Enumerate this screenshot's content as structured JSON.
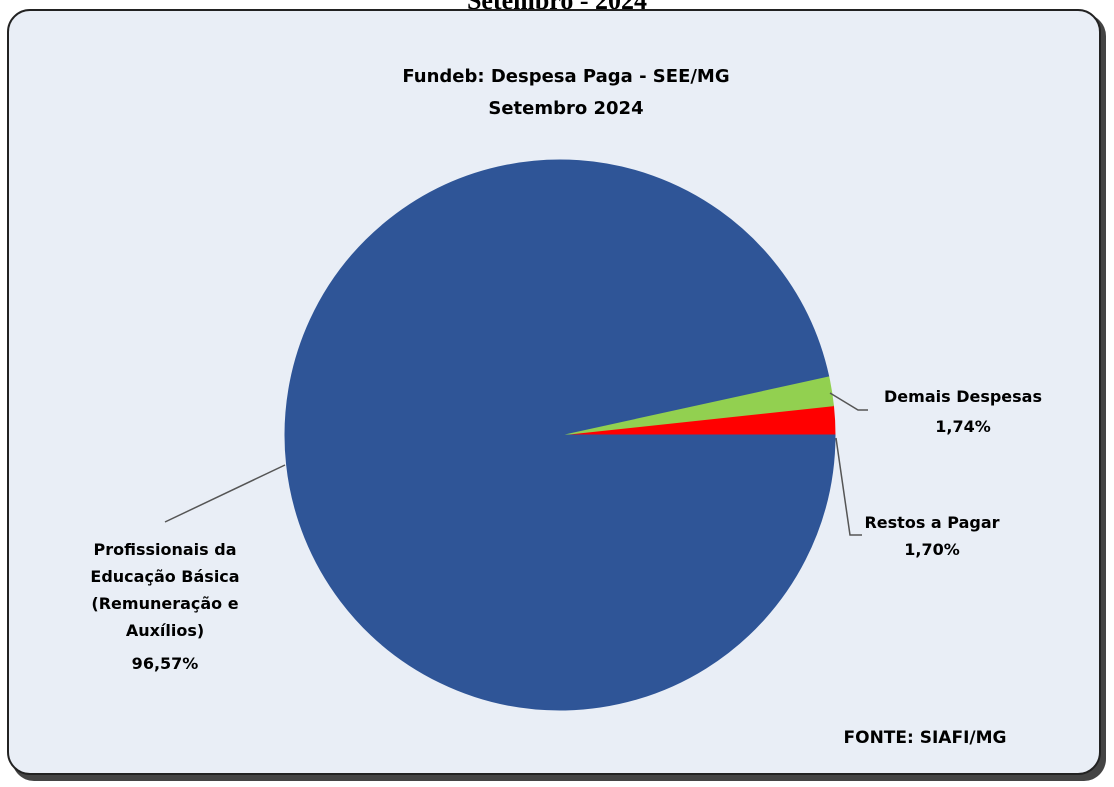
{
  "caption": "Setembro - 2024",
  "chart_data": {
    "type": "pie",
    "title": "Fundeb: Despesa Paga - SEE/MG",
    "subtitle": "Setembro 2024",
    "categories": [
      "Profissionais da Educação Básica (Remuneração e Auxílios)",
      "Demais Despesas",
      "Restos a Pagar"
    ],
    "values": [
      96.57,
      1.74,
      1.7
    ],
    "value_labels": [
      "96,57%",
      "1,74%",
      "1,70%"
    ],
    "colors": [
      "#2f5597",
      "#92d050",
      "#ff0000"
    ],
    "source": "FONTE: SIAFI/MG"
  }
}
